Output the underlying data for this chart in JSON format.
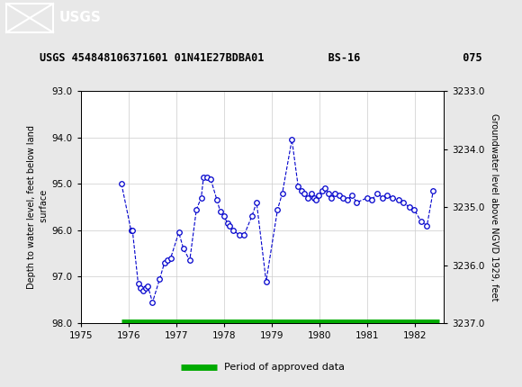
{
  "title": "USGS 454848106371601 01N41E27BDBA01          BS-16                075",
  "ylabel_left": "Depth to water level, feet below land\n surface",
  "ylabel_right": "Groundwater level above NGVD 1929, feet",
  "ylim_left": [
    93.0,
    98.0
  ],
  "ylim_right": [
    3233.0,
    3237.0
  ],
  "xlim": [
    1975.0,
    1982.6
  ],
  "xticks": [
    1975,
    1976,
    1977,
    1978,
    1979,
    1980,
    1981,
    1982
  ],
  "yticks_left": [
    93.0,
    94.0,
    95.0,
    96.0,
    97.0,
    98.0
  ],
  "yticks_right": [
    3233.0,
    3234.0,
    3235.0,
    3236.0,
    3237.0
  ],
  "data_x": [
    1975.85,
    1976.05,
    1976.08,
    1976.2,
    1976.25,
    1976.3,
    1976.35,
    1976.4,
    1976.5,
    1976.65,
    1976.75,
    1976.82,
    1976.88,
    1977.05,
    1977.15,
    1977.28,
    1977.42,
    1977.52,
    1977.57,
    1977.65,
    1977.72,
    1977.85,
    1977.92,
    1978.0,
    1978.07,
    1978.12,
    1978.18,
    1978.32,
    1978.42,
    1978.58,
    1978.68,
    1978.88,
    1979.12,
    1979.22,
    1979.42,
    1979.55,
    1979.62,
    1979.68,
    1979.75,
    1979.82,
    1979.88,
    1979.93,
    1979.98,
    1980.05,
    1980.12,
    1980.18,
    1980.25,
    1980.32,
    1980.42,
    1980.48,
    1980.58,
    1980.68,
    1980.78,
    1981.0,
    1981.1,
    1981.2,
    1981.32,
    1981.42,
    1981.52,
    1981.65,
    1981.75,
    1981.88,
    1981.98,
    1982.12,
    1982.25,
    1982.38
  ],
  "data_y": [
    95.0,
    96.0,
    96.0,
    97.15,
    97.25,
    97.3,
    97.25,
    97.2,
    97.55,
    97.05,
    96.7,
    96.65,
    96.6,
    96.05,
    96.4,
    96.65,
    95.55,
    95.3,
    94.85,
    94.85,
    94.9,
    95.35,
    95.6,
    95.7,
    95.85,
    95.9,
    96.0,
    96.1,
    96.1,
    95.7,
    95.4,
    97.1,
    95.55,
    95.2,
    94.05,
    95.05,
    95.15,
    95.2,
    95.3,
    95.2,
    95.3,
    95.35,
    95.25,
    95.15,
    95.1,
    95.2,
    95.3,
    95.2,
    95.25,
    95.3,
    95.35,
    95.25,
    95.4,
    95.3,
    95.35,
    95.2,
    95.3,
    95.25,
    95.3,
    95.35,
    95.4,
    95.5,
    95.55,
    95.8,
    95.9,
    95.15
  ],
  "line_color": "#0000CC",
  "marker_color": "#0000CC",
  "marker_facecolor": "white",
  "marker_size": 4,
  "line_style": "--",
  "line_width": 0.8,
  "approved_bar_color": "#00AA00",
  "approved_bar_x_start": 1975.85,
  "approved_bar_x_end": 1982.5,
  "header_bg_color": "#1a6b3b",
  "header_text_color": "white",
  "bg_color": "#e8e8e8",
  "plot_bg_color": "white",
  "grid_color": "#cccccc"
}
